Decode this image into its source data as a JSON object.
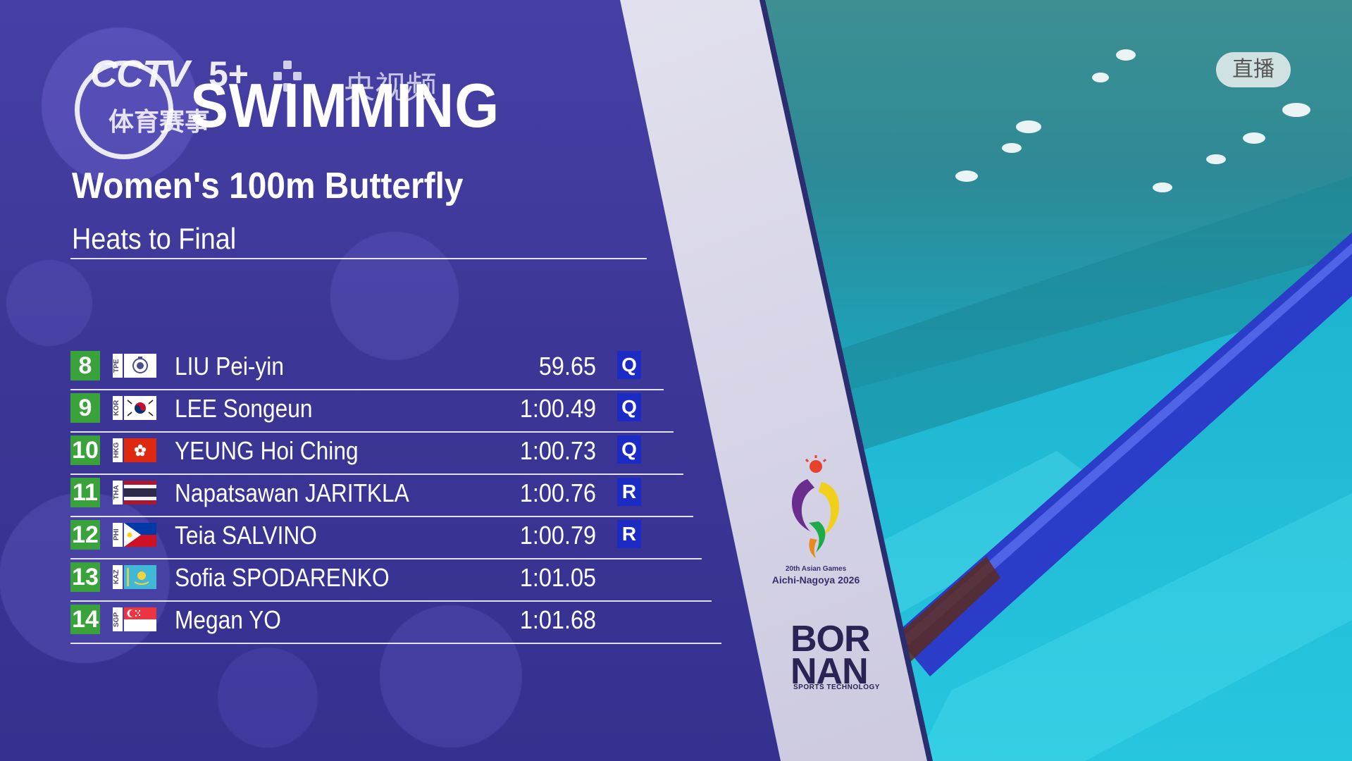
{
  "broadcast": {
    "channel_logo_text": "CCTV",
    "channel_number": "5+",
    "channel_sub": "体育赛事",
    "platform_name": "央视频",
    "live_badge": "直播"
  },
  "header": {
    "sport": "SWIMMING",
    "event": "Women's 100m Butterfly",
    "phase": "Heats to Final"
  },
  "results": [
    {
      "rank": "8",
      "noc": "TPE",
      "name": "LIU Pei-yin",
      "time": "59.65",
      "qualifier": "Q"
    },
    {
      "rank": "9",
      "noc": "KOR",
      "name": "LEE Songeun",
      "time": "1:00.49",
      "qualifier": "Q"
    },
    {
      "rank": "10",
      "noc": "HKG",
      "name": "YEUNG Hoi Ching",
      "time": "1:00.73",
      "qualifier": "Q"
    },
    {
      "rank": "11",
      "noc": "THA",
      "name": "Napatsawan JARITKLA",
      "time": "1:00.76",
      "qualifier": "R"
    },
    {
      "rank": "12",
      "noc": "PHI",
      "name": "Teia SALVINO",
      "time": "1:00.79",
      "qualifier": "R"
    },
    {
      "rank": "13",
      "noc": "KAZ",
      "name": "Sofia SPODARENKO",
      "time": "1:01.05",
      "qualifier": ""
    },
    {
      "rank": "14",
      "noc": "SGP",
      "name": "Megan YO",
      "time": "1:01.68",
      "qualifier": ""
    }
  ],
  "sponsors": {
    "games_name": "20th Asian Games",
    "games_city": "Aichi-Nagoya 2026",
    "timing_brand": "BOR\nNAN",
    "timing_sub": "SPORTS TECHNOLOGY"
  },
  "colors": {
    "panel": "#3c3796",
    "rank_box": "#3aa23a",
    "qualifier_box": "#1c2bc4",
    "pool_water": "#1fb6cf",
    "lane_rope": "#2a3cc8"
  }
}
